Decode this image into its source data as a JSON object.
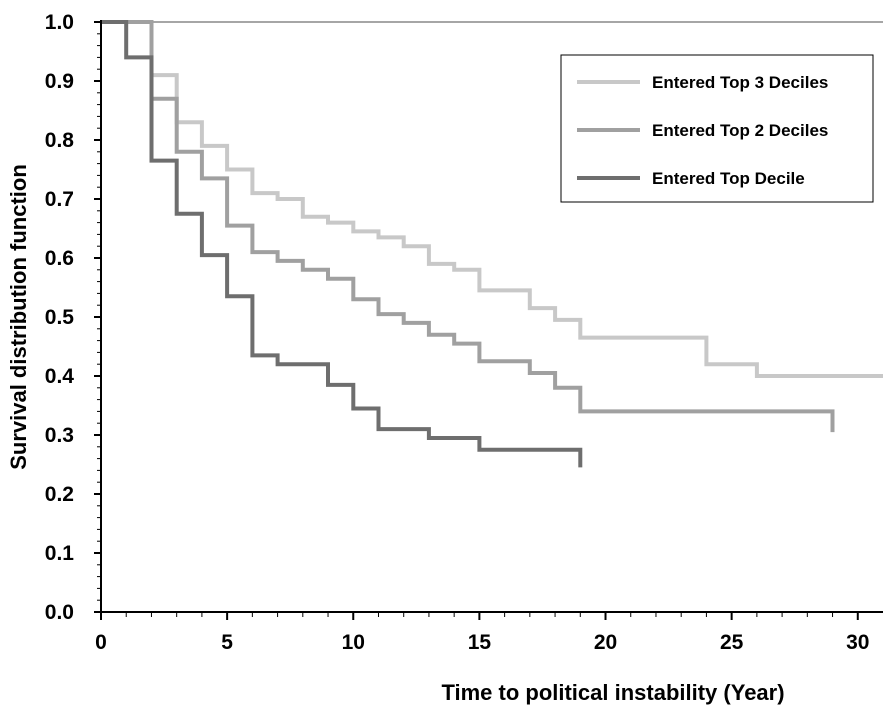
{
  "chart_data": {
    "type": "line",
    "step": true,
    "title": "",
    "xlabel": "Time to political instability (Year)",
    "ylabel": "Survival distribution function",
    "xlim": [
      0,
      31
    ],
    "ylim": [
      0,
      1.0
    ],
    "x_ticks": [
      0,
      5,
      10,
      15,
      20,
      25,
      30
    ],
    "y_ticks": [
      0.0,
      0.1,
      0.2,
      0.3,
      0.4,
      0.5,
      0.6,
      0.7,
      0.8,
      0.9,
      1.0
    ],
    "y_tick_labels": [
      "0.0",
      "0.1",
      "0.2",
      "0.3",
      "0.4",
      "0.5",
      "0.6",
      "0.7",
      "0.8",
      "0.9",
      "1.0"
    ],
    "legend_position": "top-right",
    "grid": false,
    "series": [
      {
        "name": "Entered Top 3 Deciles",
        "color": "#c8c8c8",
        "points": [
          [
            0,
            1.0
          ],
          [
            2,
            1.0
          ],
          [
            2,
            0.91
          ],
          [
            3,
            0.91
          ],
          [
            3,
            0.83
          ],
          [
            4,
            0.83
          ],
          [
            4,
            0.79
          ],
          [
            5,
            0.79
          ],
          [
            5,
            0.75
          ],
          [
            6,
            0.75
          ],
          [
            6,
            0.71
          ],
          [
            7,
            0.71
          ],
          [
            7,
            0.7
          ],
          [
            8,
            0.7
          ],
          [
            8,
            0.67
          ],
          [
            9,
            0.67
          ],
          [
            9,
            0.66
          ],
          [
            10,
            0.66
          ],
          [
            10,
            0.645
          ],
          [
            11,
            0.645
          ],
          [
            11,
            0.635
          ],
          [
            12,
            0.635
          ],
          [
            12,
            0.62
          ],
          [
            13,
            0.62
          ],
          [
            13,
            0.59
          ],
          [
            14,
            0.59
          ],
          [
            14,
            0.58
          ],
          [
            15,
            0.58
          ],
          [
            15,
            0.545
          ],
          [
            17,
            0.545
          ],
          [
            17,
            0.515
          ],
          [
            18,
            0.515
          ],
          [
            18,
            0.495
          ],
          [
            19,
            0.495
          ],
          [
            19,
            0.465
          ],
          [
            24,
            0.465
          ],
          [
            24,
            0.42
          ],
          [
            26,
            0.42
          ],
          [
            26,
            0.4
          ],
          [
            31,
            0.4
          ]
        ]
      },
      {
        "name": "Entered Top 2 Deciles",
        "color": "#a0a0a0",
        "points": [
          [
            0,
            1.0
          ],
          [
            2,
            1.0
          ],
          [
            2,
            0.97
          ],
          [
            2,
            0.87
          ],
          [
            3,
            0.87
          ],
          [
            3,
            0.78
          ],
          [
            4,
            0.78
          ],
          [
            4,
            0.735
          ],
          [
            5,
            0.735
          ],
          [
            5,
            0.655
          ],
          [
            6,
            0.655
          ],
          [
            6,
            0.61
          ],
          [
            7,
            0.61
          ],
          [
            7,
            0.595
          ],
          [
            8,
            0.595
          ],
          [
            8,
            0.58
          ],
          [
            9,
            0.58
          ],
          [
            9,
            0.565
          ],
          [
            10,
            0.565
          ],
          [
            10,
            0.53
          ],
          [
            11,
            0.53
          ],
          [
            11,
            0.505
          ],
          [
            12,
            0.505
          ],
          [
            12,
            0.49
          ],
          [
            13,
            0.49
          ],
          [
            13,
            0.47
          ],
          [
            14,
            0.47
          ],
          [
            14,
            0.455
          ],
          [
            15,
            0.455
          ],
          [
            15,
            0.425
          ],
          [
            17,
            0.425
          ],
          [
            17,
            0.405
          ],
          [
            18,
            0.405
          ],
          [
            18,
            0.38
          ],
          [
            19,
            0.38
          ],
          [
            19,
            0.34
          ],
          [
            29,
            0.34
          ],
          [
            29,
            0.305
          ]
        ]
      },
      {
        "name": "Entered Top Decile",
        "color": "#6e6e6e",
        "points": [
          [
            0,
            1.0
          ],
          [
            1,
            1.0
          ],
          [
            1,
            0.94
          ],
          [
            2,
            0.94
          ],
          [
            2,
            0.765
          ],
          [
            3,
            0.765
          ],
          [
            3,
            0.675
          ],
          [
            4,
            0.675
          ],
          [
            4,
            0.605
          ],
          [
            5,
            0.605
          ],
          [
            5,
            0.535
          ],
          [
            6,
            0.535
          ],
          [
            6,
            0.435
          ],
          [
            7,
            0.435
          ],
          [
            7,
            0.42
          ],
          [
            9,
            0.42
          ],
          [
            9,
            0.385
          ],
          [
            10,
            0.385
          ],
          [
            10,
            0.345
          ],
          [
            11,
            0.345
          ],
          [
            11,
            0.31
          ],
          [
            13,
            0.31
          ],
          [
            13,
            0.295
          ],
          [
            15,
            0.295
          ],
          [
            15,
            0.275
          ],
          [
            19,
            0.275
          ],
          [
            19,
            0.245
          ]
        ]
      }
    ]
  }
}
